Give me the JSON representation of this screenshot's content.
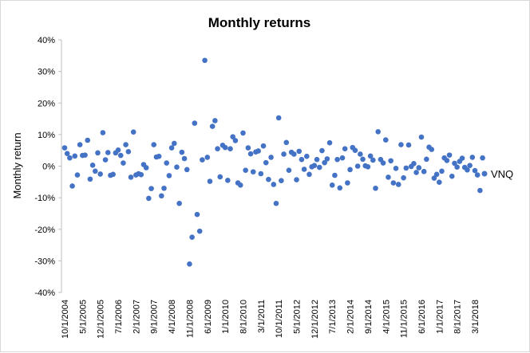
{
  "chart_data": {
    "type": "scatter",
    "title": "Monthly returns",
    "xlabel": "",
    "ylabel": "Monthly return",
    "ylim": [
      -40,
      40
    ],
    "yticks": [
      -40,
      -30,
      -20,
      -10,
      0,
      10,
      20,
      30,
      40
    ],
    "ytick_labels": [
      "-40%",
      "-30%",
      "-20%",
      "-10%",
      "0%",
      "10%",
      "20%",
      "30%",
      "40%"
    ],
    "x_start": "10/1/2004",
    "x_end": "3/1/2018",
    "x_tick_labels": [
      "10/1/2004",
      "5/1/2005",
      "12/1/2005",
      "7/1/2006",
      "2/1/2007",
      "9/1/2007",
      "4/1/2008",
      "11/1/2008",
      "6/1/2009",
      "1/1/2010",
      "8/1/2010",
      "3/1/2011",
      "10/1/2011",
      "5/1/2012",
      "12/1/2012",
      "7/1/2013",
      "2/1/2014",
      "9/1/2014",
      "4/1/2015",
      "11/1/2015",
      "6/1/2016",
      "1/1/2017",
      "8/1/2017",
      "3/1/2018"
    ],
    "grid": false,
    "legend_position": "right",
    "series": [
      {
        "name": "VNQ",
        "color": "#4472c4",
        "values": [
          5.8,
          4.0,
          2.6,
          -6.3,
          3.2,
          -2.8,
          6.8,
          3.4,
          3.5,
          8.2,
          -4.1,
          0.3,
          -1.6,
          4.2,
          -2.5,
          10.6,
          2.0,
          4.3,
          -2.9,
          -2.6,
          4.2,
          5.1,
          3.4,
          1.0,
          6.8,
          4.6,
          -3.5,
          10.8,
          -2.8,
          -2.4,
          -2.7,
          0.5,
          -0.5,
          -10.2,
          -7.1,
          6.8,
          2.9,
          3.1,
          -9.4,
          -7.0,
          1.0,
          -3.0,
          5.8,
          7.2,
          -0.3,
          -11.8,
          4.4,
          2.4,
          -1.1,
          -31.0,
          -22.5,
          13.6,
          -15.3,
          -20.6,
          2.0,
          33.5,
          2.8,
          -4.8,
          12.6,
          14.4,
          5.5,
          -3.4,
          6.6,
          5.9,
          -4.5,
          5.5,
          9.3,
          8.1,
          -5.3,
          -6.0,
          10.5,
          -1.3,
          5.8,
          3.9,
          -1.8,
          4.5,
          4.8,
          -2.4,
          6.4,
          1.1,
          -4.2,
          2.8,
          -5.8,
          -11.8,
          15.3,
          -4.6,
          3.8,
          7.5,
          -1.3,
          4.4,
          3.8,
          -4.3,
          4.7,
          2.1,
          -1.0,
          3.1,
          -2.6,
          -0.2,
          0.2,
          2.1,
          -0.4,
          4.9,
          1.1,
          2.3,
          7.4,
          -6.0,
          -2.9,
          2.1,
          -6.9,
          2.6,
          5.5,
          -5.3,
          -1.1,
          5.9,
          5.0,
          0.0,
          3.8,
          2.2,
          0.1,
          -0.2,
          3.2,
          1.9,
          -7.0,
          10.9,
          2.1,
          1.0,
          8.3,
          -3.5,
          1.7,
          -5.3,
          -0.7,
          -5.8,
          6.8,
          -3.7,
          -0.6,
          6.7,
          -0.1,
          0.8,
          -2.0,
          -0.5,
          9.2,
          -1.7,
          2.2,
          6.0,
          5.3,
          -3.8,
          -2.6,
          -5.1,
          -1.6,
          2.6,
          1.8,
          3.5,
          -3.2,
          0.9,
          -0.3,
          1.5,
          2.5,
          -0.4,
          -1.2,
          0.2,
          2.8,
          -1.4,
          -2.8,
          -7.7,
          2.6
        ]
      }
    ]
  }
}
